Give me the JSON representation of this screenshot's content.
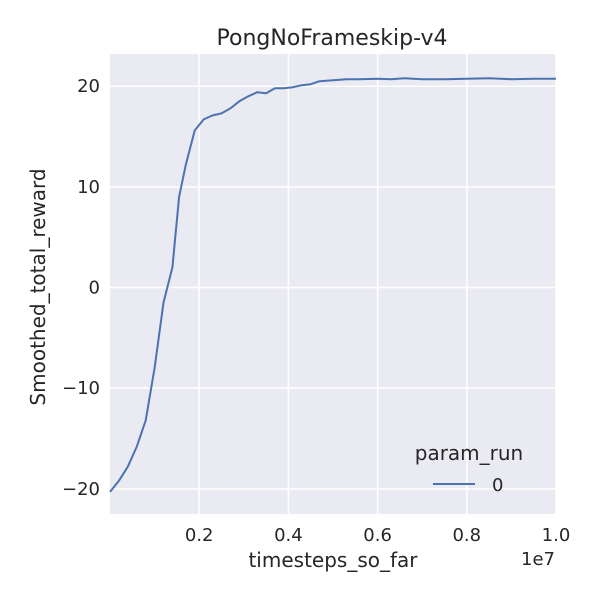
{
  "chart_data": {
    "type": "line",
    "title": "PongNoFrameskip-v4",
    "xlabel": "timesteps_so_far",
    "ylabel": "Smoothed_total_reward",
    "x_offset_text": "1e7",
    "x_tick_labels": [
      "0.2",
      "0.4",
      "0.6",
      "0.8",
      "1.0"
    ],
    "x_ticks": [
      0.2,
      0.4,
      0.6,
      0.8,
      1.0
    ],
    "y_tick_labels": [
      "20",
      "10",
      "0",
      "−10",
      "−20"
    ],
    "y_ticks": [
      20,
      10,
      0,
      -10,
      -20
    ],
    "xlim": [
      0.0,
      1.0
    ],
    "ylim": [
      -22.5,
      23.2
    ],
    "grid": true,
    "legend": {
      "title": "param_run",
      "placement": "lower-right"
    },
    "colors": {
      "background": "#EAEAF2",
      "grid": "#FFFFFF",
      "series": "#4C72B0"
    },
    "series": [
      {
        "name": "0",
        "x": [
          0.0,
          0.02,
          0.04,
          0.06,
          0.08,
          0.1,
          0.12,
          0.14,
          0.155,
          0.17,
          0.19,
          0.21,
          0.23,
          0.25,
          0.27,
          0.29,
          0.31,
          0.33,
          0.35,
          0.37,
          0.39,
          0.41,
          0.43,
          0.45,
          0.47,
          0.5,
          0.53,
          0.56,
          0.6,
          0.63,
          0.66,
          0.7,
          0.75,
          0.8,
          0.85,
          0.9,
          0.95,
          1.0
        ],
        "y": [
          -20.3,
          -19.2,
          -17.8,
          -15.8,
          -13.2,
          -8.0,
          -1.5,
          2.0,
          9.0,
          12.2,
          15.6,
          16.7,
          17.1,
          17.3,
          17.8,
          18.5,
          19.0,
          19.4,
          19.3,
          19.8,
          19.8,
          19.9,
          20.1,
          20.2,
          20.5,
          20.6,
          20.7,
          20.7,
          20.75,
          20.7,
          20.8,
          20.7,
          20.7,
          20.75,
          20.8,
          20.7,
          20.75,
          20.75
        ]
      }
    ]
  }
}
